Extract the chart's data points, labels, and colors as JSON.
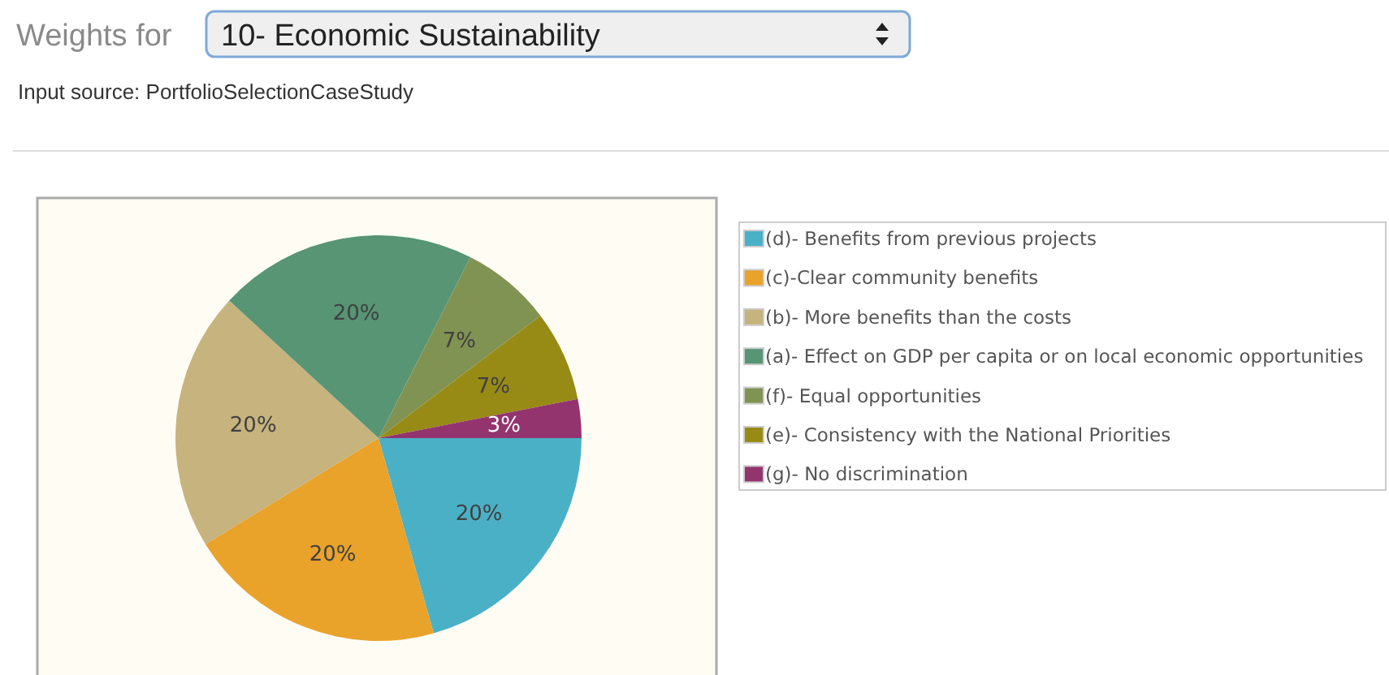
{
  "chart_data": {
    "type": "pie",
    "title": "Weights for",
    "subtitle": "10- Economic Sustainability",
    "annotations": [
      "Input source: PortfolioSelectionCaseStudy"
    ],
    "categories": [
      "(d)- Benefits from previous projects",
      "(c)-Clear community benefits",
      "(b)- More benefits than the costs",
      "(a)- Effect on GDP per capita or on local economic opportunities",
      "(f)- Equal opportunities",
      "(e)- Consistency with the National Priorities",
      "(g)- No discrimination"
    ],
    "values": [
      20,
      20,
      20,
      20,
      7,
      7,
      3
    ],
    "value_labels": [
      "20%",
      "20%",
      "20%",
      "20%",
      "7%",
      "7%",
      "3%"
    ],
    "colors": [
      "#4ab0c6",
      "#e9a22a",
      "#c6b37e",
      "#579574",
      "#819353",
      "#978b16",
      "#93346f"
    ],
    "legend": "right"
  }
}
